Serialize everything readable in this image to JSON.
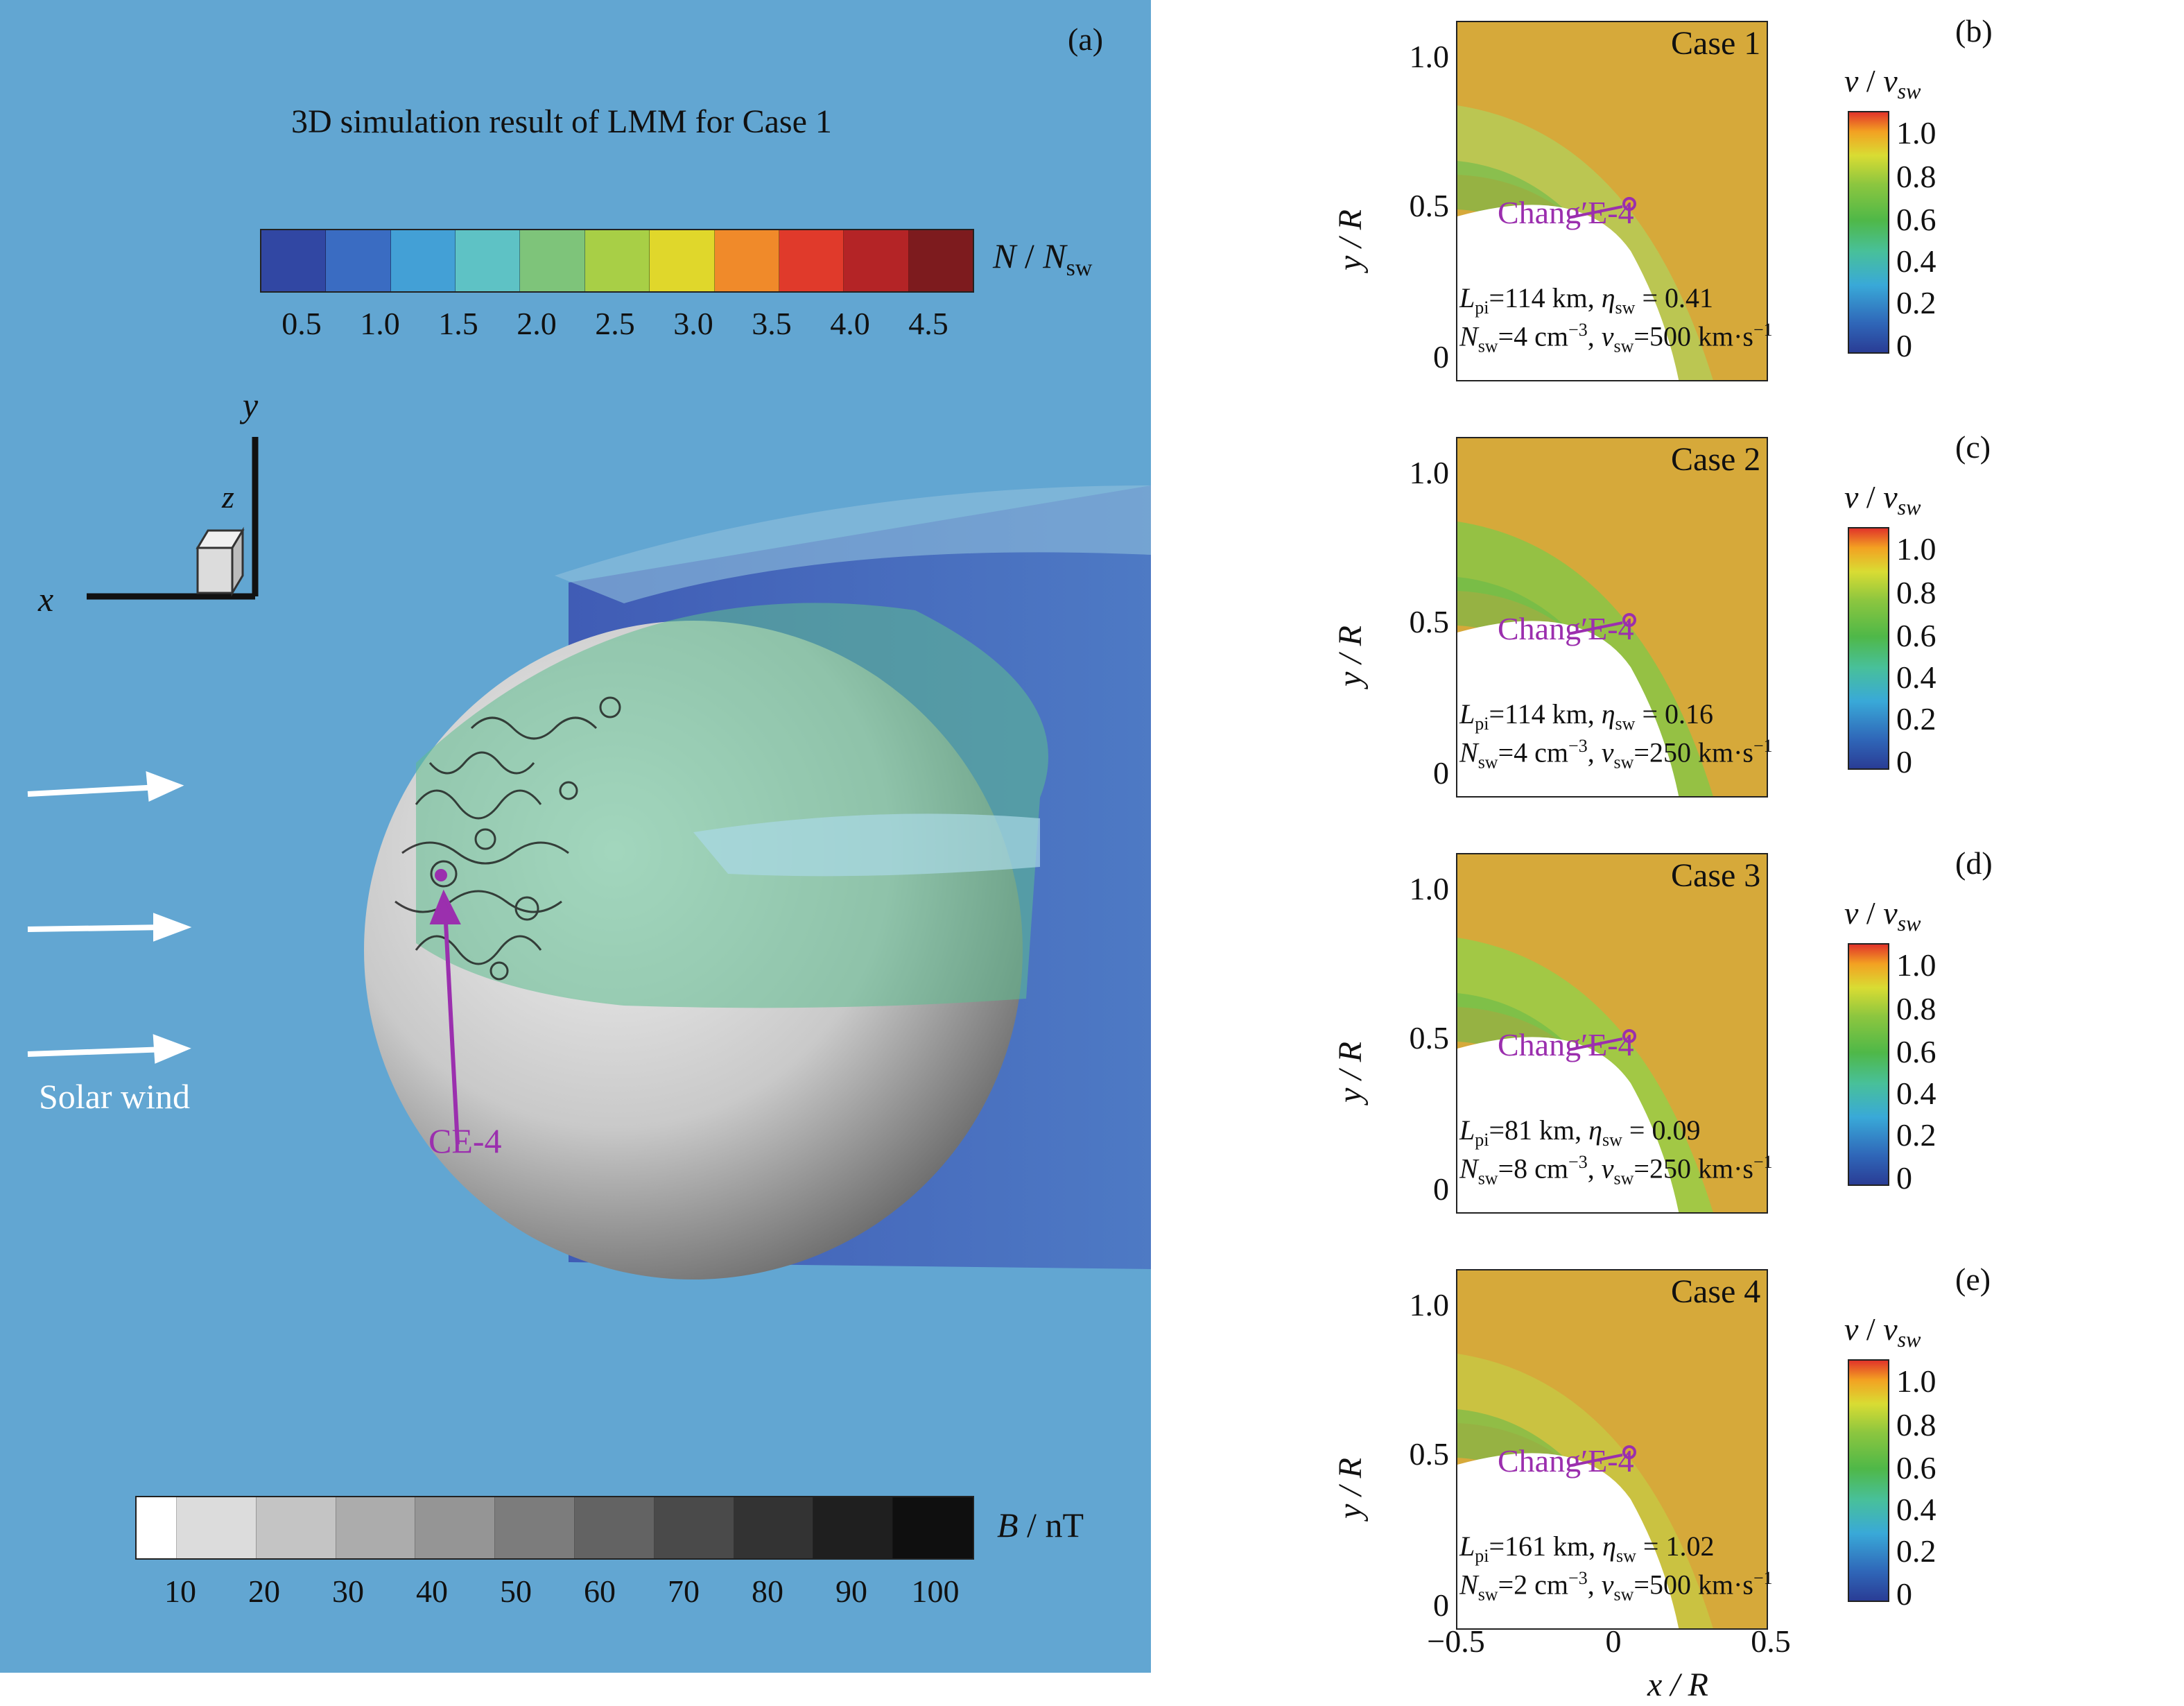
{
  "panel_a": {
    "tag": "(a)",
    "title": "3D simulation result of LMM for Case 1",
    "density_colorbar": {
      "label_main": "N",
      "label_div": " / ",
      "label_ref": "N",
      "label_sub": "sw",
      "ticks": [
        "0.5",
        "1.0",
        "1.5",
        "2.0",
        "2.5",
        "3.0",
        "3.5",
        "4.0",
        "4.5"
      ],
      "colors": [
        "#3147a3",
        "#3a6cc2",
        "#43a0d6",
        "#5ec2c5",
        "#7ec47a",
        "#a8cf46",
        "#e0d72b",
        "#f08a2a",
        "#e03a2b",
        "#b42426",
        "#7d1b1e"
      ]
    },
    "axes": {
      "y": "y",
      "z": "z",
      "x": "x"
    },
    "solar_wind_label": "Solar wind",
    "ce4_label": "CE-4",
    "b_colorbar": {
      "label_main": "B",
      "label_unit": " / nT",
      "ticks": [
        "10",
        "20",
        "30",
        "40",
        "50",
        "60",
        "70",
        "80",
        "90",
        "100"
      ],
      "colors": [
        "#ffffff",
        "#dcdcdc",
        "#c4c4c4",
        "#acacac",
        "#959595",
        "#7c7c7c",
        "#636363",
        "#4a4a4a",
        "#333333",
        "#1f1f1f",
        "#0f0f0f"
      ]
    }
  },
  "right_panels": [
    {
      "letter": "(b)",
      "case": "Case 1",
      "lpi": "114 km",
      "eta": "0.41",
      "nsw": "4 cm",
      "vsw": "500 km",
      "background": "#d6a93a",
      "sheath": "#b8c955"
    },
    {
      "letter": "(c)",
      "case": "Case 2",
      "lpi": "114 km",
      "eta": "0.16",
      "nsw": "4 cm",
      "vsw": "250 km",
      "background": "#d6a93a",
      "sheath": "#8ec346"
    },
    {
      "letter": "(d)",
      "case": "Case 3",
      "lpi": "81 km",
      "eta": "0.09",
      "nsw": "8 cm",
      "vsw": "250 km",
      "background": "#d6a93a",
      "sheath": "#9ccb47"
    },
    {
      "letter": "(e)",
      "case": "Case 4",
      "lpi": "161 km",
      "eta": "1.02",
      "nsw": "2 cm",
      "vsw": "500 km",
      "background": "#d6a93a",
      "sheath": "#c9c443"
    }
  ],
  "right_common": {
    "colorbar_label_v": "v",
    "colorbar_label_div": " / ",
    "colorbar_label_sub": "sw",
    "colorbar_ticks": [
      "1.0",
      "0.8",
      "0.6",
      "0.4",
      "0.2",
      "0"
    ],
    "y_ticks": [
      "1.0",
      "0.5",
      "0"
    ],
    "y_label": "y / R",
    "chang_label": "Chang′E-4",
    "lpi_sym": "L",
    "lpi_sub": "pi",
    "eta_sym": "η",
    "eta_sub": "sw",
    "n_sym": "N",
    "n_sub": "sw",
    "n_exp": "−3",
    "v_sym": "v",
    "v_sub": "sw",
    "v_unit_tail": "·s",
    "v_exp": "−1"
  },
  "x_axis": {
    "ticks": [
      "−0.5",
      "0",
      "0.5"
    ],
    "label": "x / R"
  },
  "accent": {
    "ce4_magenta": "#9b2fae"
  }
}
